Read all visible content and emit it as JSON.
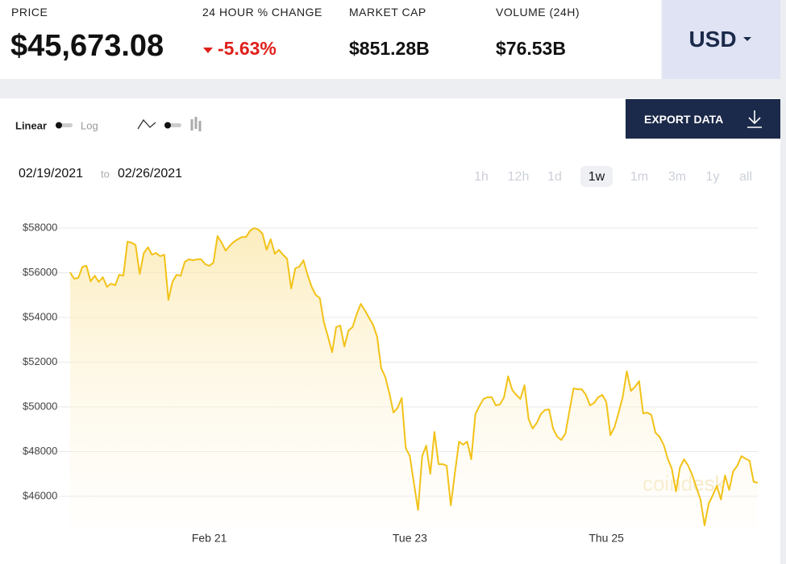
{
  "header": {
    "price_label": "PRICE",
    "price": "$45,673.08",
    "change_label": "24 HOUR % CHANGE",
    "change": "-5.63%",
    "market_cap_label": "MARKET CAP",
    "market_cap": "$851.28B",
    "volume_label": "VOLUME (24H)",
    "volume": "$76.53B",
    "currency": "USD"
  },
  "controls": {
    "linear": "Linear",
    "log": "Log",
    "export": "EXPORT DATA",
    "date_from": "02/19/2021",
    "date_sep": "to",
    "date_to": "02/26/2021",
    "ranges": [
      "1h",
      "12h",
      "1d",
      "1w",
      "1m",
      "3m",
      "1y",
      "all"
    ],
    "watermark": "coindesk"
  },
  "chart_data": {
    "type": "line",
    "color": "#f2c218",
    "grid": true,
    "ylim": [
      44600,
      58600
    ],
    "yticks": [
      {
        "value": 46000,
        "label": "$46000"
      },
      {
        "value": 48000,
        "label": "$48000"
      },
      {
        "value": 50000,
        "label": "$50000"
      },
      {
        "value": 52000,
        "label": "$52000"
      },
      {
        "value": 54000,
        "label": "$54000"
      },
      {
        "value": 56000,
        "label": "$56000"
      },
      {
        "value": 58000,
        "label": "$58000"
      }
    ],
    "xlim": [
      0,
      168
    ],
    "xticks": [
      {
        "value": 34,
        "label": "Feb 21"
      },
      {
        "value": 83,
        "label": "Tue 23"
      },
      {
        "value": 131,
        "label": "Thu 25"
      }
    ],
    "values": [
      56020,
      55730,
      55770,
      56270,
      56310,
      55620,
      55870,
      55590,
      55800,
      55370,
      55510,
      55440,
      55910,
      55870,
      57390,
      57350,
      57240,
      55950,
      56880,
      57140,
      56810,
      56880,
      56740,
      56810,
      54790,
      55590,
      55910,
      55870,
      56490,
      56600,
      56560,
      56600,
      56600,
      56380,
      56310,
      56450,
      57640,
      57350,
      56990,
      57210,
      57390,
      57500,
      57600,
      57600,
      57890,
      58000,
      57930,
      57750,
      57030,
      57500,
      56850,
      57030,
      56810,
      56630,
      55300,
      56200,
      56270,
      56560,
      55910,
      55370,
      55010,
      54870,
      53780,
      53140,
      52450,
      53570,
      53640,
      52700,
      53420,
      53570,
      54140,
      54610,
      54320,
      54000,
      53680,
      53140,
      51730,
      51330,
      50610,
      49750,
      49960,
      50400,
      48160,
      47800,
      46580,
      45390,
      47800,
      48270,
      47010,
      48880,
      47440,
      47440,
      47370,
      45600,
      47050,
      48450,
      48310,
      48450,
      47660,
      49680,
      50040,
      50360,
      50430,
      50430,
      50070,
      50110,
      50430,
      51370,
      50760,
      50540,
      50360,
      50970,
      49460,
      49030,
      49280,
      49680,
      49860,
      49890,
      49030,
      48670,
      48520,
      48810,
      49820,
      50830,
      50790,
      50790,
      50540,
      50070,
      50180,
      50430,
      50540,
      50220,
      48740,
      49100,
      49750,
      50430,
      51590,
      50720,
      50900,
      51150,
      49710,
      49750,
      49640,
      48850,
      48670,
      48310,
      47690,
      47230,
      46220,
      47300,
      47660,
      47370,
      46940,
      46400,
      45860,
      44700,
      45680,
      46040,
      46470,
      45860,
      46940,
      46290,
      47120,
      47370,
      47800,
      47690,
      47590,
      46650,
      46610
    ]
  }
}
